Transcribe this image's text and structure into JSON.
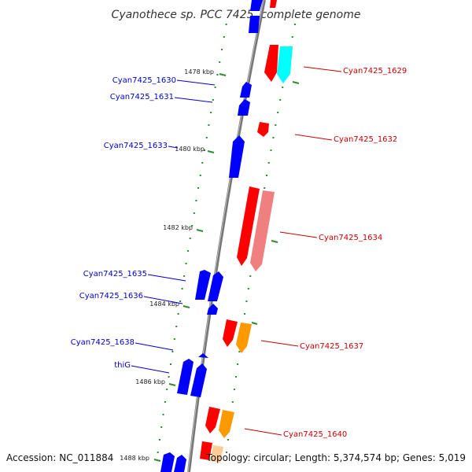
{
  "title": "Cyanothece sp. PCC 7425, complete genome",
  "footer": {
    "accession": "Accession: NC_011884",
    "summary": "Topology: circular; Length: 5,374,574 bp; Genes: 5,019"
  },
  "scale_ticks": [
    {
      "label": "1478 kbp"
    },
    {
      "label": "1480 kbp"
    },
    {
      "label": "1482 kbp"
    },
    {
      "label": "1484 kbp"
    },
    {
      "label": "1486 kbp"
    },
    {
      "label": "1488 kbp"
    }
  ],
  "colors": {
    "reverse_strand": "#0000ff",
    "forward_red": "#ff0000",
    "forward_pink": "#f08080",
    "forward_cyan": "#00ffff",
    "forward_orange": "#ff9900",
    "tick": "#2e8b2e",
    "backbone": "#888888"
  },
  "genes": {
    "left": [
      {
        "name": "Cyan7425_1630"
      },
      {
        "name": "Cyan7425_1631"
      },
      {
        "name": "Cyan7425_1633"
      },
      {
        "name": "Cyan7425_1635"
      },
      {
        "name": "Cyan7425_1636"
      },
      {
        "name": "Cyan7425_1638"
      },
      {
        "name": "thiG"
      }
    ],
    "right": [
      {
        "name": "Cyan7425_1629"
      },
      {
        "name": "Cyan7425_1632"
      },
      {
        "name": "Cyan7425_1634"
      },
      {
        "name": "Cyan7425_1637"
      },
      {
        "name": "Cyan7425_1640"
      }
    ]
  }
}
